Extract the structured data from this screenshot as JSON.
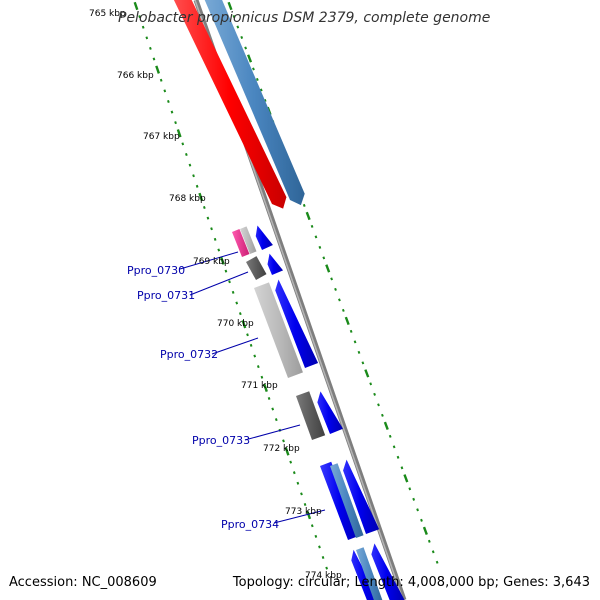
{
  "title": "Pelobacter propionicus DSM 2379, complete genome",
  "footer": {
    "accession": "Accession: NC_008609",
    "summary": "Topology: circular; Length: 4,008,000 bp; Genes: 3,643"
  },
  "colors": {
    "backbone": "#8a8a8a",
    "tick_green": "#1a8a1a",
    "rrna_red": "#ff0000",
    "rrna_blue": "#4a86c0",
    "cds_blue": "#0000ee",
    "pseudo_gray": "#b8b8b8",
    "dark_gray": "#606060",
    "pink": "#e8348c",
    "label_blue": "#0000aa"
  },
  "scale_labels": [
    "765 kbp",
    "766 kbp",
    "767 kbp",
    "768 kbp",
    "769 kbp",
    "770 kbp",
    "771 kbp",
    "772 kbp",
    "773 kbp",
    "774 kbp"
  ],
  "gene_labels": [
    "Ppro_0730",
    "Ppro_0731",
    "Ppro_0732",
    "Ppro_0733",
    "Ppro_0734"
  ]
}
